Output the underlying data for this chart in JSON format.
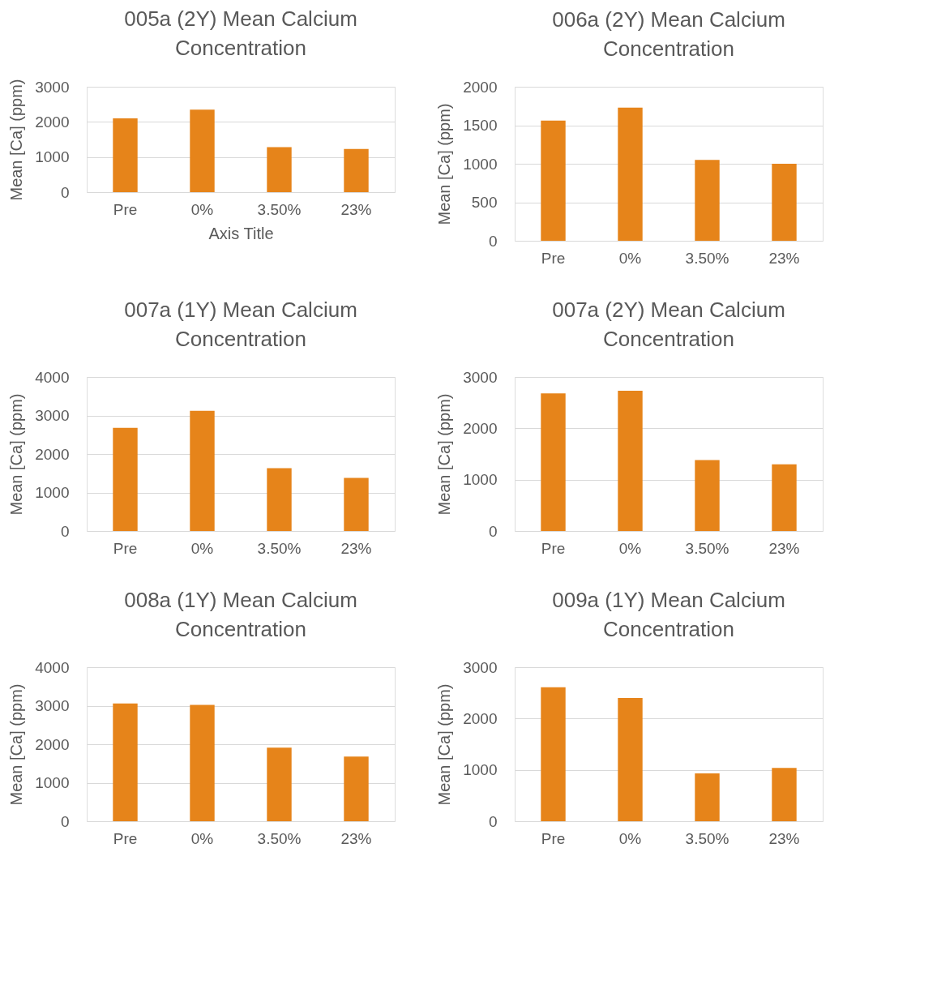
{
  "chart_data": [
    {
      "type": "bar",
      "title": "005a (2Y) Mean Calcium Concentration",
      "xlabel": "Axis Title",
      "ylabel": "Mean [Ca] (ppm)",
      "categories": [
        "Pre",
        "0%",
        "3.50%",
        "23%"
      ],
      "values": [
        2100,
        2350,
        1280,
        1230
      ],
      "color": "#e6841a",
      "ylim": [
        0,
        3000
      ],
      "yticks": [
        0,
        1000,
        2000,
        3000
      ],
      "grid": "y"
    },
    {
      "type": "bar",
      "title": "006a (2Y)  Mean Calcium Concentration",
      "ylabel": "Mean [Ca] (ppm)",
      "categories": [
        "Pre",
        "0%",
        "3.50%",
        "23%"
      ],
      "values": [
        1560,
        1730,
        1050,
        1000
      ],
      "color": "#e6841a",
      "ylim": [
        0,
        2000
      ],
      "yticks": [
        0,
        500,
        1000,
        1500,
        2000
      ],
      "grid": "y"
    },
    {
      "type": "bar",
      "title": "007a (1Y) Mean Calcium Concentration",
      "ylabel": "Mean [Ca] (ppm)",
      "categories": [
        "Pre",
        "0%",
        "3.50%",
        "23%"
      ],
      "values": [
        2680,
        3120,
        1630,
        1380
      ],
      "color": "#e6841a",
      "ylim": [
        0,
        4000
      ],
      "yticks": [
        0,
        1000,
        2000,
        3000,
        4000
      ],
      "grid": "y"
    },
    {
      "type": "bar",
      "title": "007a (2Y) Mean Calcium Concentration",
      "ylabel": "Mean [Ca] (ppm)",
      "categories": [
        "Pre",
        "0%",
        "3.50%",
        "23%"
      ],
      "values": [
        2680,
        2730,
        1380,
        1300
      ],
      "color": "#e6841a",
      "ylim": [
        0,
        3000
      ],
      "yticks": [
        0,
        1000,
        2000,
        3000
      ],
      "grid": "y"
    },
    {
      "type": "bar",
      "title": "008a (1Y) Mean Calcium Concentration",
      "ylabel": "Mean [Ca] (ppm)",
      "categories": [
        "Pre",
        "0%",
        "3.50%",
        "23%"
      ],
      "values": [
        3060,
        3020,
        1910,
        1680
      ],
      "color": "#e6841a",
      "ylim": [
        0,
        4000
      ],
      "yticks": [
        0,
        1000,
        2000,
        3000,
        4000
      ],
      "grid": "y"
    },
    {
      "type": "bar",
      "title": "009a (1Y) Mean Calcium Concentration",
      "ylabel": "Mean [Ca] (ppm)",
      "categories": [
        "Pre",
        "0%",
        "3.50%",
        "23%"
      ],
      "values": [
        2610,
        2400,
        930,
        1040
      ],
      "color": "#e6841a",
      "ylim": [
        0,
        3000
      ],
      "yticks": [
        0,
        1000,
        2000,
        3000
      ],
      "grid": "y"
    }
  ]
}
